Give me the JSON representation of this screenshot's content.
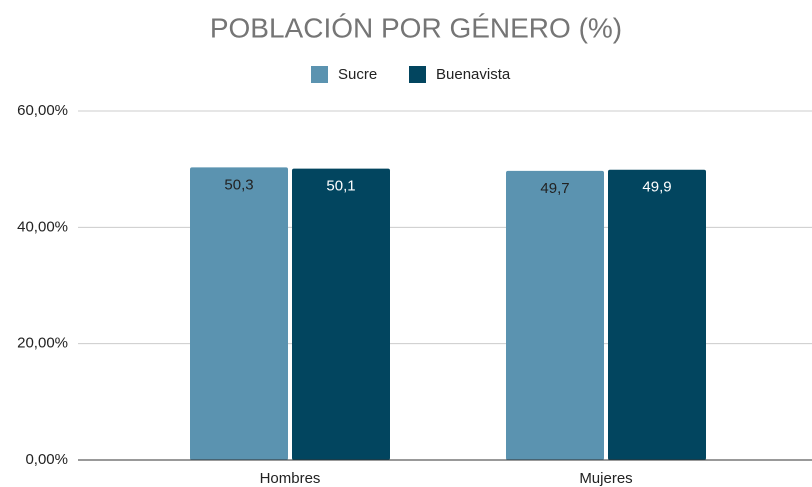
{
  "chart_data": {
    "type": "bar",
    "title": "POBLACIÓN POR GÉNERO (%)",
    "categories": [
      "Hombres",
      "Mujeres"
    ],
    "series": [
      {
        "name": "Sucre",
        "color": "#5b93b0",
        "values": [
          50.3,
          49.7
        ],
        "value_labels": [
          "50,3",
          "49,7"
        ]
      },
      {
        "name": "Buenavista",
        "color": "#02455f",
        "values": [
          50.1,
          49.9
        ],
        "value_labels": [
          "50,1",
          "49,9"
        ]
      }
    ],
    "ylim": [
      0,
      60
    ],
    "yticks": [
      {
        "value": 0,
        "label": "0,00%"
      },
      {
        "value": 20,
        "label": "20,00%"
      },
      {
        "value": 40,
        "label": "40,00%"
      },
      {
        "value": 60,
        "label": "60,00%"
      }
    ],
    "grid": true,
    "legend": "top"
  }
}
